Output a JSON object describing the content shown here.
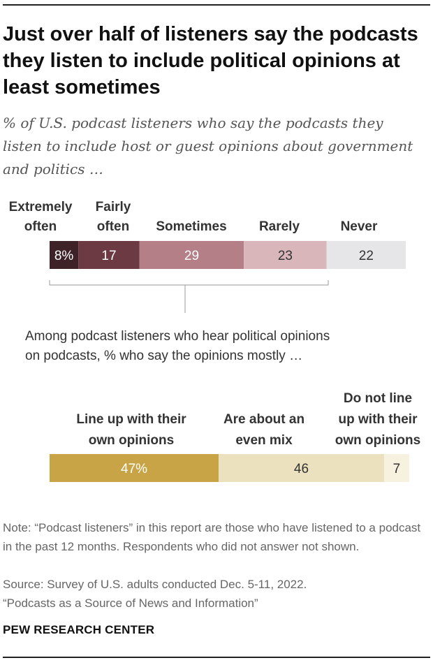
{
  "title": "Just over half of listeners say the podcasts they listen to include political opinions at least sometimes",
  "subtitle": "% of U.S. podcast listeners who say the podcasts they listen to include host or guest opinions about government and politics …",
  "chart_data": [
    {
      "type": "bar",
      "orientation": "horizontal-stacked",
      "categories": [
        "Extremely often",
        "Fairly often",
        "Sometimes",
        "Rarely",
        "Never"
      ],
      "values": [
        8,
        17,
        29,
        23,
        22
      ],
      "value_labels": [
        "8%",
        "17",
        "29",
        "23",
        "22"
      ],
      "colors": [
        "#3d2328",
        "#6b3a42",
        "#b47f86",
        "#d8b6b9",
        "#e6e6e8"
      ],
      "label_colors": [
        "#ffffff",
        "#ffffff",
        "#ffffff",
        "#333333",
        "#333333"
      ]
    },
    {
      "type": "bar",
      "orientation": "horizontal-stacked",
      "title": "Among podcast listeners who hear political opinions on podcasts, % who say the opinions mostly …",
      "categories": [
        "Line up with their own opinions",
        "Are about an even mix",
        "Do not line up with their own opinions"
      ],
      "values": [
        47,
        46,
        7
      ],
      "value_labels": [
        "47%",
        "46",
        "7"
      ],
      "colors": [
        "#c9a446",
        "#ece1be",
        "#f7f1df"
      ],
      "label_colors": [
        "#ffffff",
        "#333333",
        "#333333"
      ]
    }
  ],
  "note": "Note: “Podcast listeners” in this report are those who have listened to a podcast in the past 12 months. Respondents who did not answer not shown.",
  "source": "Source: Survey of U.S. adults conducted Dec. 5-11, 2022.",
  "report": "“Podcasts as a Source of News and Information”",
  "brand": "PEW RESEARCH CENTER"
}
